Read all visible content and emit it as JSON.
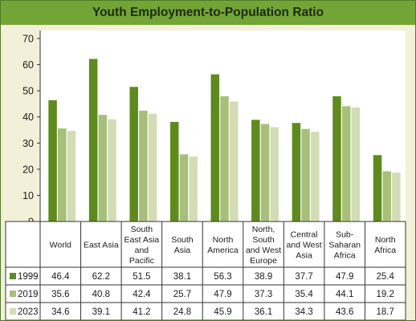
{
  "chart_data": {
    "type": "bar",
    "title": "Youth Employment-to-Population Ratio",
    "xlabel": "",
    "ylabel": "",
    "ylim": [
      0,
      70
    ],
    "yticks": [
      0,
      10,
      20,
      30,
      40,
      50,
      60,
      70
    ],
    "grid": false,
    "legend": "table-left",
    "categories": [
      [
        "World"
      ],
      [
        "East Asia"
      ],
      [
        "South",
        "East Asia",
        "and",
        "Pacific"
      ],
      [
        "South",
        "Asia"
      ],
      [
        "North",
        "America"
      ],
      [
        "North,",
        "South",
        "and West",
        "Europe"
      ],
      [
        "Central",
        "and West",
        "Asia"
      ],
      [
        "Sub-",
        "Saharan",
        "Africa"
      ],
      [
        "North",
        "Africa"
      ]
    ],
    "series": [
      {
        "name": "1999",
        "color": "#5e8a1e",
        "values": [
          46.4,
          62.2,
          51.5,
          38.1,
          56.3,
          38.9,
          37.7,
          47.9,
          25.4
        ]
      },
      {
        "name": "2019",
        "color": "#a8bf79",
        "values": [
          35.6,
          40.8,
          42.4,
          25.7,
          47.9,
          37.3,
          35.4,
          44.1,
          19.2
        ]
      },
      {
        "name": "2023",
        "color": "#d3dcb4",
        "values": [
          34.6,
          39.1,
          41.2,
          24.8,
          45.9,
          36.1,
          34.3,
          43.6,
          18.7
        ]
      }
    ]
  }
}
